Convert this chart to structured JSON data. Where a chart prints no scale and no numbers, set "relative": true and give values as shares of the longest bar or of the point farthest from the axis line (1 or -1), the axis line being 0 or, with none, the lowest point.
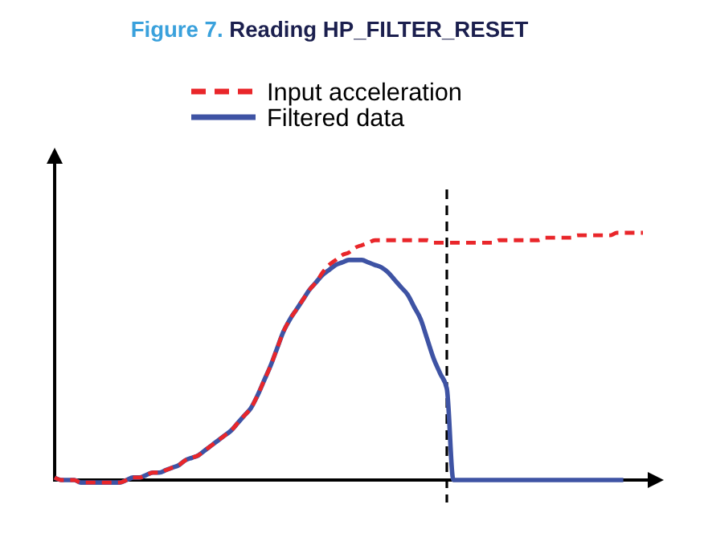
{
  "chart_data": {
    "type": "line",
    "title": "Figure 7. Reading HP_FILTER_RESET",
    "relative": true,
    "legend": "top",
    "categories": [
      null,
      null,
      null,
      null,
      null,
      null,
      null,
      null,
      null,
      null,
      null,
      null,
      null,
      null,
      null,
      null,
      null,
      null,
      null,
      null,
      null,
      null,
      null,
      null,
      null,
      null,
      null,
      null,
      null,
      null,
      null,
      null,
      null,
      null,
      null,
      null,
      null,
      null,
      null,
      null,
      null,
      null,
      null,
      null,
      null,
      null,
      null,
      null,
      null,
      null,
      null,
      null,
      null,
      null,
      null,
      null,
      null,
      null,
      null,
      null,
      null,
      null,
      null,
      null,
      null,
      null,
      null,
      null,
      null,
      null,
      null,
      null,
      null,
      null,
      null,
      null,
      null,
      null,
      null,
      null,
      null,
      null,
      null,
      null,
      null,
      null,
      null,
      null,
      null,
      null,
      null
    ],
    "series": [
      {
        "name": "Input acceleration",
        "color": "#e9262a",
        "line_style": "dashed",
        "values": [
          0.01,
          0,
          0,
          0,
          -0.01,
          -0.01,
          -0.01,
          -0.01,
          -0.01,
          -0.01,
          -0.01,
          0,
          0.01,
          0.01,
          0.02,
          0.03,
          0.03,
          0.04,
          0.05,
          0.06,
          0.08,
          0.09,
          0.1,
          0.12,
          0.14,
          0.16,
          0.18,
          0.2,
          0.23,
          0.26,
          0.29,
          0.34,
          0.4,
          0.46,
          0.53,
          0.6,
          0.65,
          0.69,
          0.73,
          0.77,
          0.8,
          0.84,
          0.87,
          0.89,
          0.91,
          0.92,
          0.94,
          0.95,
          0.96,
          0.97,
          0.97,
          0.97,
          0.97,
          0.97,
          0.97,
          0.97,
          0.97,
          0.97,
          0.96,
          0.96,
          0.96,
          0.96,
          0.96,
          0.96,
          0.96,
          0.96,
          0.96,
          0.96,
          0.97,
          0.97,
          0.97,
          0.97,
          0.97,
          0.97,
          0.97,
          0.98,
          0.98,
          0.98,
          0.98,
          0.98,
          0.99,
          0.99,
          0.99,
          0.99,
          0.99,
          0.99,
          1,
          1,
          1,
          1,
          1
        ]
      },
      {
        "name": "Filtered data",
        "color": "#3e53a4",
        "line_style": "solid",
        "values": [
          0.01,
          0,
          0,
          0,
          -0.01,
          -0.01,
          -0.01,
          -0.01,
          -0.01,
          -0.01,
          -0.01,
          0,
          0.01,
          0.01,
          0.02,
          0.03,
          0.03,
          0.04,
          0.05,
          0.06,
          0.08,
          0.09,
          0.1,
          0.12,
          0.14,
          0.16,
          0.18,
          0.2,
          0.23,
          0.26,
          0.29,
          0.34,
          0.4,
          0.46,
          0.53,
          0.6,
          0.65,
          0.69,
          0.73,
          0.77,
          0.8,
          0.83,
          0.85,
          0.87,
          0.88,
          0.89,
          0.89,
          0.89,
          0.88,
          0.87,
          0.86,
          0.84,
          0.81,
          0.78,
          0.75,
          0.7,
          0.65,
          0.57,
          0.49,
          0.43,
          0.37,
          0,
          0,
          0,
          0,
          0,
          0,
          0,
          0,
          0,
          0,
          0,
          0,
          0,
          0,
          0,
          0,
          0,
          0,
          0,
          0,
          0,
          0,
          0,
          0,
          0,
          0,
          0,
          null,
          null,
          null
        ]
      }
    ]
  }
}
